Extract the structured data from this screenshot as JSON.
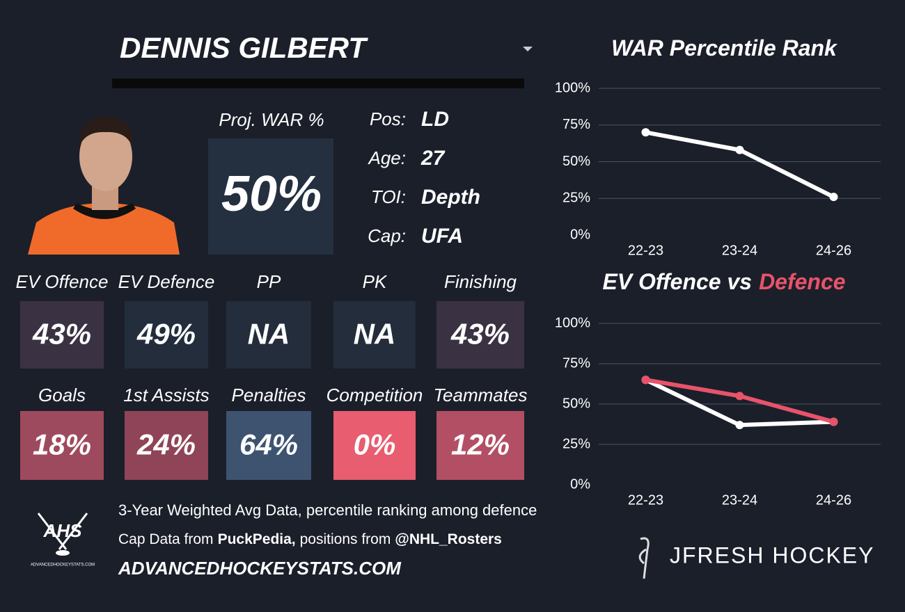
{
  "player": {
    "name": "DENNIS GILBERT",
    "war_label": "Proj. WAR %",
    "war_value": "50%",
    "info": [
      {
        "label": "Pos:",
        "value": "LD"
      },
      {
        "label": "Age:",
        "value": "27"
      },
      {
        "label": "TOI:",
        "value": "Depth"
      },
      {
        "label": "Cap:",
        "value": "UFA"
      }
    ]
  },
  "tiles": [
    {
      "label": "EV Offence",
      "value": "43%",
      "color": "#3a3142"
    },
    {
      "label": "EV Defence",
      "value": "49%",
      "color": "#232d3b"
    },
    {
      "label": "PP",
      "value": "NA",
      "color": "#232d3b"
    },
    {
      "label": "PK",
      "value": "NA",
      "color": "#232d3b"
    },
    {
      "label": "Finishing",
      "value": "43%",
      "color": "#3a3142"
    },
    {
      "label": "Goals",
      "value": "18%",
      "color": "#9e4a5e"
    },
    {
      "label": "1st Assists",
      "value": "24%",
      "color": "#8f4458"
    },
    {
      "label": "Penalties",
      "value": "64%",
      "color": "#3d5370"
    },
    {
      "label": "Competition",
      "value": "0%",
      "color": "#e85d70"
    },
    {
      "label": "Teammates",
      "value": "12%",
      "color": "#b24f64"
    }
  ],
  "footer": {
    "note": "3-Year Weighted Avg Data, percentile ranking among defence",
    "cap_prefix": "Cap Data from",
    "cap_source": "PuckPedia,",
    "pos_prefix": "positions from",
    "pos_source": "@NHL_Rosters",
    "website": "ADVANCEDHOCKEYSTATS.COM",
    "logo": "AHS",
    "logo_sub": "ADVANCEDHOCKEYSTATS.COM"
  },
  "brand": "JFRESH HOCKEY",
  "chart_data": [
    {
      "type": "line",
      "title": "WAR Percentile Rank",
      "categories": [
        "22-23",
        "23-24",
        "24-26"
      ],
      "series": [
        {
          "color": "#ffffff",
          "values": [
            70,
            58,
            26
          ]
        }
      ],
      "ylim": [
        0,
        100
      ],
      "yticks": [
        {
          "value": 0,
          "label": "0%"
        },
        {
          "value": 25,
          "label": "25%"
        },
        {
          "value": 50,
          "label": "50%"
        },
        {
          "value": 75,
          "label": "75%"
        },
        {
          "value": 100,
          "label": "100%"
        }
      ],
      "grid": true
    },
    {
      "type": "line",
      "title": "EV Offence vs",
      "title_highlight": "Defence",
      "categories": [
        "22-23",
        "23-24",
        "24-26"
      ],
      "series": [
        {
          "color": "#ffffff",
          "values": [
            65,
            37,
            39
          ]
        },
        {
          "color": "#e8536a",
          "values": [
            65,
            55,
            39
          ]
        }
      ],
      "ylim": [
        0,
        100
      ],
      "yticks": [
        {
          "value": 0,
          "label": "0%"
        },
        {
          "value": 25,
          "label": "25%"
        },
        {
          "value": 50,
          "label": "50%"
        },
        {
          "value": 75,
          "label": "75%"
        },
        {
          "value": 100,
          "label": "100%"
        }
      ],
      "grid": true
    }
  ]
}
